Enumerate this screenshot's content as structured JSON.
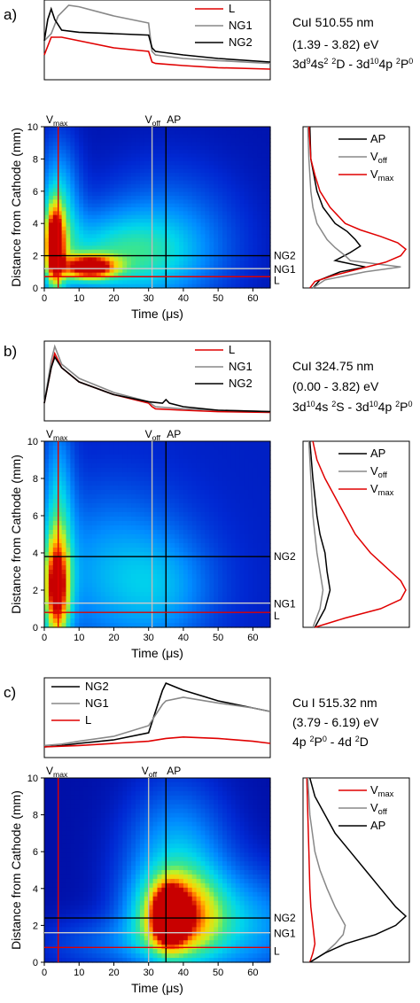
{
  "chart_data": [
    {
      "type": "heatmap",
      "panel_label": "a)",
      "info_lines": [
        "CuI  510.55 nm",
        "(1.39 - 3.82) eV"
      ],
      "transition": {
        "parts": [
          {
            "t": "3d"
          },
          {
            "t": "9",
            "s": "sup"
          },
          {
            "t": "4s"
          },
          {
            "t": "2",
            "s": "sup"
          },
          {
            "t": " "
          },
          {
            "t": "2",
            "s": "sup"
          },
          {
            "t": "D - 3d"
          },
          {
            "t": "10",
            "s": "sup"
          },
          {
            "t": "4p "
          },
          {
            "t": "2",
            "s": "sup"
          },
          {
            "t": "P"
          },
          {
            "t": "0",
            "s": "sup"
          }
        ]
      },
      "xlabel": "Time (μs)",
      "ylabel": "Distance from Cathode (mm)",
      "xlim": [
        0,
        65
      ],
      "ylim": [
        0,
        10
      ],
      "xticks": [
        0,
        10,
        20,
        30,
        40,
        50,
        60
      ],
      "yticks": [
        0,
        2,
        4,
        6,
        8,
        10
      ],
      "vlines": [
        {
          "label": "V",
          "sub": "max",
          "x": 4,
          "color": "#e00000"
        },
        {
          "label": "V",
          "sub": "off",
          "x": 31,
          "color": "#bbbbbb"
        },
        {
          "label": "AP",
          "x": 35,
          "color": "#000000"
        }
      ],
      "hlines": [
        {
          "label": "NG2",
          "y": 2.0,
          "color": "#000000"
        },
        {
          "label": "NG1",
          "y": 1.2,
          "color": "#cccccc"
        },
        {
          "label": "L",
          "y": 0.7,
          "color": "#e00000"
        }
      ],
      "heat_sources": [
        {
          "x": 3,
          "y": 2.6,
          "amp": 0.9,
          "sx": 1.8,
          "sy": 1.6
        },
        {
          "x": 13,
          "y": 1.3,
          "amp": 0.9,
          "sx": 5,
          "sy": 0.5
        },
        {
          "x": 4,
          "y": 4.5,
          "amp": 0.4,
          "sx": 4,
          "sy": 3
        },
        {
          "x": 20,
          "y": 2.0,
          "amp": 0.35,
          "sx": 15,
          "sy": 1.8
        },
        {
          "x": 35,
          "y": 3.0,
          "amp": 0.22,
          "sx": 14,
          "sy": 3
        }
      ],
      "heat_base": 0.05,
      "time_traces": {
        "legend": [
          "L",
          "NG1",
          "NG2"
        ],
        "legend_position": "top-right",
        "series": [
          {
            "name": "L",
            "color": "#e00000",
            "x": [
              0,
              2,
              5,
              10,
              20,
              30,
              31,
              32,
              40,
              50,
              65
            ],
            "y": [
              0.3,
              0.55,
              0.55,
              0.5,
              0.4,
              0.35,
              0.2,
              0.18,
              0.15,
              0.12,
              0.1
            ]
          },
          {
            "name": "NG1",
            "color": "#888888",
            "x": [
              0,
              2,
              4,
              7,
              10,
              20,
              30,
              31,
              32,
              40,
              50,
              65
            ],
            "y": [
              0.5,
              0.6,
              0.85,
              1.0,
              0.98,
              0.85,
              0.75,
              0.35,
              0.3,
              0.25,
              0.22,
              0.18
            ]
          },
          {
            "name": "NG2",
            "color": "#000000",
            "x": [
              0,
              1,
              2,
              3,
              5,
              10,
              20,
              30,
              31,
              32,
              40,
              50,
              65
            ],
            "y": [
              0.5,
              0.8,
              0.95,
              0.8,
              0.65,
              0.62,
              0.6,
              0.58,
              0.4,
              0.35,
              0.3,
              0.25,
              0.2
            ]
          }
        ]
      },
      "profiles": {
        "legend": [
          {
            "label": "AP"
          },
          {
            "label": "V",
            "sub": "off"
          },
          {
            "label": "V",
            "sub": "max"
          }
        ],
        "series": [
          {
            "name": "AP",
            "color": "#000000",
            "y": [
              0,
              0.5,
              1.0,
              1.3,
              1.7,
              2.2,
              2.6,
              3.0,
              3.5,
              4.0,
              5.0,
              6.0,
              8.0,
              10.0
            ],
            "i": [
              0.08,
              0.15,
              0.35,
              0.6,
              0.3,
              0.45,
              0.55,
              0.5,
              0.42,
              0.3,
              0.18,
              0.12,
              0.06,
              0.05
            ]
          },
          {
            "name": "Voff",
            "color": "#888888",
            "y": [
              0,
              0.5,
              1.0,
              1.3,
              1.7,
              2.0,
              2.5,
              3.0,
              4.0,
              5.0,
              6.0,
              8.0,
              10.0
            ],
            "i": [
              0.08,
              0.2,
              0.6,
              0.95,
              0.45,
              0.4,
              0.3,
              0.22,
              0.12,
              0.08,
              0.06,
              0.04,
              0.03
            ]
          },
          {
            "name": "Vmax",
            "color": "#e00000",
            "y": [
              0,
              0.4,
              0.8,
              1.2,
              1.6,
              2.0,
              2.4,
              2.8,
              3.2,
              3.6,
              4.0,
              5.0,
              6.0,
              7.0,
              8.0,
              10.0
            ],
            "i": [
              0.05,
              0.1,
              0.3,
              0.55,
              0.8,
              0.95,
              1.0,
              0.92,
              0.75,
              0.55,
              0.4,
              0.25,
              0.15,
              0.1,
              0.06,
              0.04
            ]
          }
        ]
      }
    },
    {
      "type": "heatmap",
      "panel_label": "b)",
      "info_lines": [
        "CuI  324.75 nm",
        "(0.00  - 3.82) eV"
      ],
      "transition": {
        "parts": [
          {
            "t": "3d"
          },
          {
            "t": "10",
            "s": "sup"
          },
          {
            "t": "4s "
          },
          {
            "t": "2",
            "s": "sup"
          },
          {
            "t": "S - 3d"
          },
          {
            "t": "10",
            "s": "sup"
          },
          {
            "t": "4p "
          },
          {
            "t": "2",
            "s": "sup"
          },
          {
            "t": "P"
          },
          {
            "t": "0",
            "s": "sup"
          }
        ]
      },
      "xlabel": "Time (μs)",
      "ylabel": "Distance from Cathode (mm)",
      "xlim": [
        0,
        65
      ],
      "ylim": [
        0,
        10
      ],
      "xticks": [
        0,
        10,
        20,
        30,
        40,
        50,
        60
      ],
      "yticks": [
        0,
        2,
        4,
        6,
        8,
        10
      ],
      "vlines": [
        {
          "label": "V",
          "sub": "max",
          "x": 4,
          "color": "#e00000"
        },
        {
          "label": "V",
          "sub": "off",
          "x": 31,
          "color": "#bbbbbb"
        },
        {
          "label": "AP",
          "x": 35,
          "color": "#000000"
        }
      ],
      "hlines": [
        {
          "label": "NG2",
          "y": 3.8,
          "color": "#000000"
        },
        {
          "label": "NG1",
          "y": 1.3,
          "color": "#cccccc"
        },
        {
          "label": "L",
          "y": 0.8,
          "color": "#e00000"
        }
      ],
      "heat_sources": [
        {
          "x": 3.5,
          "y": 2.0,
          "amp": 0.75,
          "sx": 2.5,
          "sy": 1.8
        },
        {
          "x": 4,
          "y": 5,
          "amp": 0.35,
          "sx": 3,
          "sy": 4
        },
        {
          "x": 20,
          "y": 3,
          "amp": 0.25,
          "sx": 15,
          "sy": 3
        },
        {
          "x": 35,
          "y": 2,
          "amp": 0.15,
          "sx": 10,
          "sy": 2
        }
      ],
      "heat_base": 0.08,
      "time_traces": {
        "legend": [
          "L",
          "NG1",
          "NG2"
        ],
        "legend_position": "top-right",
        "series": [
          {
            "name": "L",
            "color": "#e00000",
            "x": [
              0,
              2,
              3,
              5,
              10,
              20,
              30,
              31,
              32,
              40,
              50,
              65
            ],
            "y": [
              0.2,
              0.7,
              0.9,
              0.7,
              0.5,
              0.32,
              0.2,
              0.15,
              0.12,
              0.1,
              0.08,
              0.07
            ]
          },
          {
            "name": "NG1",
            "color": "#888888",
            "x": [
              0,
              2,
              3,
              5,
              10,
              20,
              30,
              31,
              32,
              40,
              50,
              65
            ],
            "y": [
              0.2,
              0.8,
              1.0,
              0.75,
              0.55,
              0.35,
              0.22,
              0.18,
              0.15,
              0.12,
              0.1,
              0.08
            ]
          },
          {
            "name": "NG2",
            "color": "#000000",
            "x": [
              0,
              2,
              3,
              5,
              10,
              20,
              30,
              34,
              35,
              36,
              40,
              50,
              65
            ],
            "y": [
              0.2,
              0.7,
              0.85,
              0.7,
              0.5,
              0.32,
              0.22,
              0.2,
              0.25,
              0.2,
              0.15,
              0.1,
              0.08
            ]
          }
        ]
      },
      "profiles": {
        "legend": [
          {
            "label": "AP"
          },
          {
            "label": "V",
            "sub": "off"
          },
          {
            "label": "V",
            "sub": "max"
          }
        ],
        "series": [
          {
            "name": "AP",
            "color": "#000000",
            "y": [
              0,
              1.0,
              2.0,
              3.0,
              4.0,
              5.0,
              6.0,
              8.0,
              10.0
            ],
            "i": [
              0.1,
              0.2,
              0.25,
              0.22,
              0.2,
              0.15,
              0.12,
              0.08,
              0.05
            ]
          },
          {
            "name": "Voff",
            "color": "#888888",
            "y": [
              0,
              1.0,
              2.0,
              3.0,
              4.0,
              5.0,
              6.0,
              8.0,
              10.0
            ],
            "i": [
              0.08,
              0.15,
              0.18,
              0.15,
              0.12,
              0.1,
              0.08,
              0.06,
              0.04
            ]
          },
          {
            "name": "Vmax",
            "color": "#e00000",
            "y": [
              0,
              0.5,
              1.0,
              1.5,
              2.0,
              2.5,
              3.0,
              4.0,
              5.0,
              6.0,
              7.0,
              8.0,
              9.0,
              10.0
            ],
            "i": [
              0.1,
              0.4,
              0.75,
              0.95,
              1.0,
              0.95,
              0.85,
              0.65,
              0.5,
              0.4,
              0.3,
              0.2,
              0.12,
              0.08
            ]
          }
        ]
      }
    },
    {
      "type": "heatmap",
      "panel_label": "c)",
      "info_lines": [
        "Cu I  515.32 nm",
        "(3.79 - 6.19) eV"
      ],
      "transition": {
        "parts": [
          {
            "t": "4p "
          },
          {
            "t": "2",
            "s": "sup"
          },
          {
            "t": "P"
          },
          {
            "t": "0",
            "s": "sup"
          },
          {
            "t": " - 4d "
          },
          {
            "t": "2",
            "s": "sup"
          },
          {
            "t": "D"
          }
        ]
      },
      "xlabel": "Time (μs)",
      "ylabel": "Distance from Cathode (mm)",
      "xlim": [
        0,
        65
      ],
      "ylim": [
        0,
        10
      ],
      "xticks": [
        0,
        10,
        20,
        30,
        40,
        50,
        60
      ],
      "yticks": [
        0,
        2,
        4,
        6,
        8,
        10
      ],
      "vlines": [
        {
          "label": "V",
          "sub": "max",
          "x": 4,
          "color": "#e00000"
        },
        {
          "label": "V",
          "sub": "off",
          "x": 30,
          "color": "#bbbbbb"
        },
        {
          "label": "AP",
          "x": 35,
          "color": "#000000"
        }
      ],
      "hlines": [
        {
          "label": "NG2",
          "y": 2.4,
          "color": "#000000"
        },
        {
          "label": "NG1",
          "y": 1.6,
          "color": "#cccccc"
        },
        {
          "label": "L",
          "y": 0.8,
          "color": "#e00000"
        }
      ],
      "heat_sources": [
        {
          "x": 36,
          "y": 2.5,
          "amp": 0.95,
          "sx": 3,
          "sy": 1
        },
        {
          "x": 38,
          "y": 2.5,
          "amp": 0.6,
          "sx": 8,
          "sy": 1.5
        },
        {
          "x": 38,
          "y": 5,
          "amp": 0.35,
          "sx": 10,
          "sy": 3
        },
        {
          "x": 55,
          "y": 2,
          "amp": 0.3,
          "sx": 15,
          "sy": 2
        },
        {
          "x": 20,
          "y": 1,
          "amp": 0.15,
          "sx": 15,
          "sy": 1
        }
      ],
      "heat_base": 0.04,
      "time_traces": {
        "legend": [
          "NG2",
          "NG1",
          "L"
        ],
        "legend_position": "top-left",
        "series": [
          {
            "name": "NG2",
            "color": "#000000",
            "x": [
              0,
              5,
              10,
              20,
              30,
              32,
              34,
              35,
              36,
              40,
              50,
              60,
              65
            ],
            "y": [
              0.1,
              0.12,
              0.15,
              0.2,
              0.3,
              0.6,
              0.9,
              1.0,
              0.98,
              0.9,
              0.75,
              0.65,
              0.6
            ]
          },
          {
            "name": "NG1",
            "color": "#888888",
            "x": [
              0,
              5,
              10,
              20,
              30,
              32,
              34,
              35,
              40,
              50,
              60,
              65
            ],
            "y": [
              0.12,
              0.14,
              0.18,
              0.25,
              0.4,
              0.55,
              0.7,
              0.75,
              0.8,
              0.72,
              0.65,
              0.6
            ]
          },
          {
            "name": "L",
            "color": "#e00000",
            "x": [
              0,
              10,
              20,
              30,
              35,
              40,
              50,
              60,
              65
            ],
            "y": [
              0.1,
              0.12,
              0.15,
              0.18,
              0.22,
              0.24,
              0.22,
              0.18,
              0.15
            ]
          }
        ]
      },
      "profiles": {
        "legend": [
          {
            "label": "V",
            "sub": "max"
          },
          {
            "label": "V",
            "sub": "off"
          },
          {
            "label": "AP"
          }
        ],
        "series": [
          {
            "name": "Vmax",
            "color": "#e00000",
            "y": [
              0,
              0.5,
              1.0,
              2.0,
              3.0,
              4.0,
              6.0,
              8.0,
              10.0
            ],
            "i": [
              0.05,
              0.08,
              0.1,
              0.08,
              0.06,
              0.05,
              0.04,
              0.03,
              0.02
            ]
          },
          {
            "name": "Voff",
            "color": "#888888",
            "y": [
              0,
              0.5,
              1.0,
              1.5,
              2.0,
              2.5,
              3.0,
              4.0,
              5.0,
              6.0,
              8.0,
              10.0
            ],
            "i": [
              0.05,
              0.2,
              0.3,
              0.38,
              0.4,
              0.35,
              0.3,
              0.22,
              0.15,
              0.1,
              0.05,
              0.03
            ]
          },
          {
            "name": "AP",
            "color": "#000000",
            "y": [
              0,
              0.5,
              1.0,
              1.5,
              2.0,
              2.5,
              3.0,
              4.0,
              5.0,
              6.0,
              7.0,
              8.0,
              9.0,
              10.0
            ],
            "i": [
              0.05,
              0.2,
              0.4,
              0.7,
              0.9,
              1.0,
              0.9,
              0.75,
              0.6,
              0.45,
              0.3,
              0.2,
              0.1,
              0.05
            ]
          }
        ]
      }
    }
  ]
}
